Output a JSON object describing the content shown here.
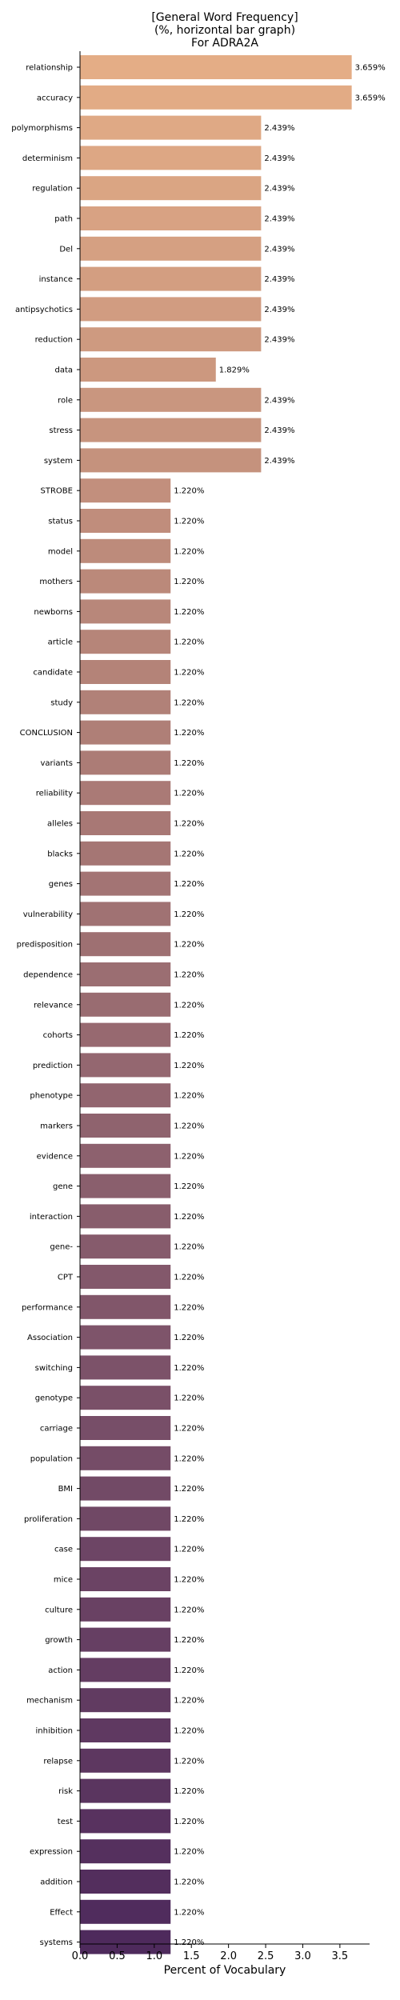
{
  "chart_data": {
    "type": "bar",
    "orientation": "horizontal",
    "title_lines": [
      "[General Word Frequency]",
      "(%, horizontal bar graph)",
      "For ADRA2A"
    ],
    "xlabel": "Percent of Vocabulary",
    "ylabel": "",
    "xlim": [
      0,
      3.9
    ],
    "xticks": [
      0.0,
      0.5,
      1.0,
      1.5,
      2.0,
      2.5,
      3.0,
      3.5
    ],
    "xtick_labels": [
      "0.0",
      "0.5",
      "1.0",
      "1.5",
      "2.0",
      "2.5",
      "3.0",
      "3.5"
    ],
    "grid": false,
    "legend": "none",
    "colormap": "flare",
    "color_start": "#e4ad86",
    "color_end": "#4e2a5c",
    "categories": [
      "relationship",
      "accuracy",
      "polymorphisms",
      "determinism",
      "regulation",
      "path",
      "Del",
      "instance",
      "antipsychotics",
      "reduction",
      "data",
      "role",
      "stress",
      "system",
      "STROBE",
      "status",
      "model",
      "mothers",
      "newborns",
      "article",
      "candidate",
      "study",
      "CONCLUSION",
      "variants",
      "reliability",
      "alleles",
      "blacks",
      "genes",
      "vulnerability",
      "predisposition",
      "dependence",
      "relevance",
      "cohorts",
      "prediction",
      "phenotype",
      "markers",
      "evidence",
      "gene",
      "interaction",
      "gene-",
      "CPT",
      "performance",
      "Association",
      "switching",
      "genotype",
      "carriage",
      "population",
      "BMI",
      "proliferation",
      "case",
      "mice",
      "culture",
      "growth",
      "action",
      "mechanism",
      "inhibition",
      "relapse",
      "risk",
      "test",
      "expression",
      "addition",
      "Effect",
      "systems"
    ],
    "values": [
      3.659,
      3.659,
      2.439,
      2.439,
      2.439,
      2.439,
      2.439,
      2.439,
      2.439,
      2.439,
      1.829,
      2.439,
      2.439,
      2.439,
      1.22,
      1.22,
      1.22,
      1.22,
      1.22,
      1.22,
      1.22,
      1.22,
      1.22,
      1.22,
      1.22,
      1.22,
      1.22,
      1.22,
      1.22,
      1.22,
      1.22,
      1.22,
      1.22,
      1.22,
      1.22,
      1.22,
      1.22,
      1.22,
      1.22,
      1.22,
      1.22,
      1.22,
      1.22,
      1.22,
      1.22,
      1.22,
      1.22,
      1.22,
      1.22,
      1.22,
      1.22,
      1.22,
      1.22,
      1.22,
      1.22,
      1.22,
      1.22,
      1.22,
      1.22,
      1.22,
      1.22,
      1.22,
      1.22
    ],
    "value_labels": [
      "3.659%",
      "3.659%",
      "2.439%",
      "2.439%",
      "2.439%",
      "2.439%",
      "2.439%",
      "2.439%",
      "2.439%",
      "2.439%",
      "1.829%",
      "2.439%",
      "2.439%",
      "2.439%",
      "1.220%",
      "1.220%",
      "1.220%",
      "1.220%",
      "1.220%",
      "1.220%",
      "1.220%",
      "1.220%",
      "1.220%",
      "1.220%",
      "1.220%",
      "1.220%",
      "1.220%",
      "1.220%",
      "1.220%",
      "1.220%",
      "1.220%",
      "1.220%",
      "1.220%",
      "1.220%",
      "1.220%",
      "1.220%",
      "1.220%",
      "1.220%",
      "1.220%",
      "1.220%",
      "1.220%",
      "1.220%",
      "1.220%",
      "1.220%",
      "1.220%",
      "1.220%",
      "1.220%",
      "1.220%",
      "1.220%",
      "1.220%",
      "1.220%",
      "1.220%",
      "1.220%",
      "1.220%",
      "1.220%",
      "1.220%",
      "1.220%",
      "1.220%",
      "1.220%",
      "1.220%",
      "1.220%",
      "1.220%",
      "1.220%"
    ]
  }
}
